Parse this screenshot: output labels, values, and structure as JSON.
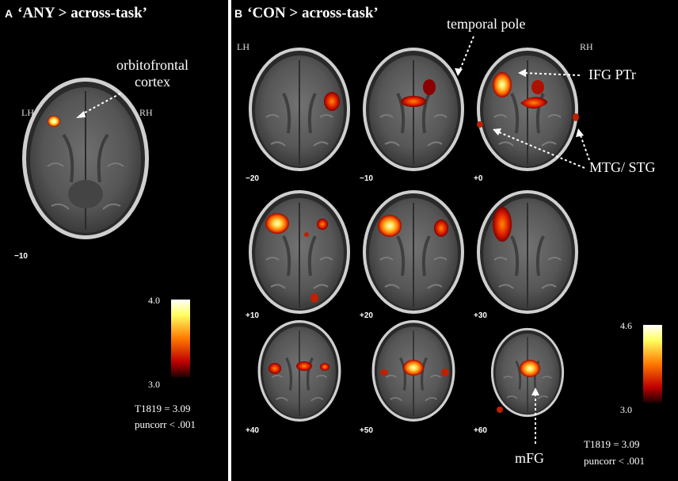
{
  "panel_a": {
    "letter": "A",
    "title": "‘ANY > across-task’",
    "hemi_left": "LH",
    "hemi_right": "RH",
    "slice": "−10",
    "annotation_line1": "orbitofrontal",
    "annotation_line2": "cortex",
    "colorbar_max": "4.0",
    "colorbar_min": "3.0",
    "stat_t": "T1819 = 3.09",
    "stat_p": "puncorr  < .001"
  },
  "panel_b": {
    "letter": "B",
    "title": "‘CON > across-task’",
    "hemi_left": "LH",
    "hemi_right": "RH",
    "slices": [
      "−20",
      "−10",
      "+0",
      "+10",
      "+20",
      "+30",
      "+40",
      "+50",
      "+60"
    ],
    "annotations": {
      "temporal_pole": "temporal pole",
      "ifg": "IFG PTr",
      "mtg": "MTG/ STG",
      "mfg": "mFG"
    },
    "colorbar_max": "4.6",
    "colorbar_min": "3.0",
    "stat_t": "T1819 = 3.09",
    "stat_p": "puncorr  < .001"
  },
  "colors": {
    "background": "#000000",
    "divider": "#ffffff",
    "activation_hot": "#ffff80",
    "activation_mid": "#ff6a00",
    "activation_low": "#8b0000"
  }
}
